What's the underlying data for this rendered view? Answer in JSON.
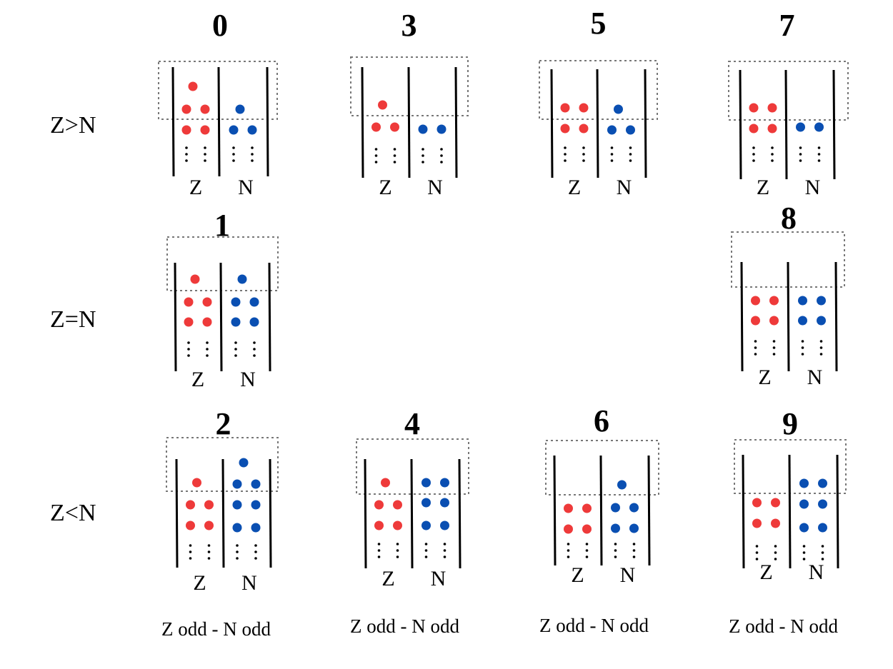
{
  "row_labels": [
    "Z>N",
    "Z=N",
    "Z<N"
  ],
  "column_labels": {
    "z": "Z",
    "n": "N"
  },
  "caption": "Z odd - N odd",
  "colors": {
    "proton": "#ee3a3a",
    "neutron": "#0a4fb2",
    "line": "#000000",
    "box": "#777777"
  },
  "panels": [
    {
      "id": "0",
      "label": "0",
      "z_rows": [
        1,
        2,
        2
      ],
      "n_rows": [
        1,
        2
      ]
    },
    {
      "id": "3",
      "label": "3",
      "z_rows": [
        1,
        2
      ],
      "n_rows": [
        2
      ]
    },
    {
      "id": "5",
      "label": "5",
      "z_rows": [
        2,
        2
      ],
      "n_rows": [
        1,
        2
      ]
    },
    {
      "id": "7",
      "label": "7",
      "z_rows": [
        2,
        2
      ],
      "n_rows": [
        2
      ]
    },
    {
      "id": "1",
      "label": "1",
      "z_rows": [
        1,
        2,
        2
      ],
      "n_rows": [
        1,
        2,
        2
      ]
    },
    {
      "id": "8",
      "label": "8",
      "z_rows": [
        2,
        2
      ],
      "n_rows": [
        2,
        2
      ]
    },
    {
      "id": "2",
      "label": "2",
      "z_rows": [
        1,
        2,
        2
      ],
      "n_rows": [
        1,
        2,
        2,
        2
      ]
    },
    {
      "id": "4",
      "label": "4",
      "z_rows": [
        1,
        2,
        2
      ],
      "n_rows": [
        2,
        2,
        2
      ]
    },
    {
      "id": "6",
      "label": "6",
      "z_rows": [
        2,
        2
      ],
      "n_rows": [
        1,
        2,
        2
      ]
    },
    {
      "id": "9",
      "label": "9",
      "z_rows": [
        2,
        2
      ],
      "n_rows": [
        2,
        2,
        2
      ]
    }
  ]
}
